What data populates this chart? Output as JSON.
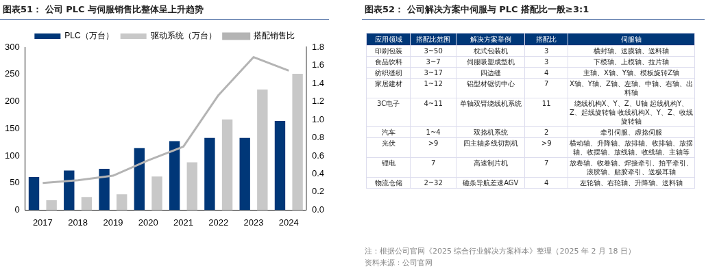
{
  "chart_data": [
    {
      "type": "bar",
      "title": "图表51：  公司 PLC 与伺服销售比整体呈上升趋势",
      "categories": [
        "2017",
        "2018",
        "2019",
        "2020",
        "2021",
        "2022",
        "2023",
        "2024"
      ],
      "series": [
        {
          "name": "PLC（万台）",
          "color": "#003778",
          "values": [
            61,
            73,
            76,
            114,
            127,
            133,
            133,
            164
          ]
        },
        {
          "name": "驱动系统（万台）",
          "color": "#c8c8c8",
          "values": [
            18,
            24,
            29,
            62,
            88,
            167,
            222,
            251
          ]
        },
        {
          "name": "搭配销售比",
          "color": "#b4b4b4",
          "type": "line",
          "axis": "y2",
          "values": [
            0.3,
            0.33,
            0.38,
            0.55,
            0.7,
            1.27,
            1.69,
            1.54
          ]
        }
      ],
      "ylim": [
        0,
        300
      ],
      "yticks": [
        0,
        50,
        100,
        150,
        200,
        250,
        300
      ],
      "y2lim": [
        0,
        1.8
      ],
      "y2ticks": [
        {
          "value": 0,
          "label": "0.0"
        },
        0.2,
        0.4,
        0.6,
        0.8,
        {
          "value": 1,
          "label": "1.0"
        },
        1.2,
        1.4,
        1.6,
        1.8
      ],
      "legend": "top",
      "grid": false,
      "marker": "none"
    },
    {
      "type": "other",
      "title": "图表52：  公司解决方案中伺服与 PLC 搭配比一般≥3:1",
      "categories": [
        "应用领域",
        "搭配比范围",
        "解决方案举例",
        "搭配比",
        "伺服轴"
      ],
      "annotations": [
        "印刷包装",
        "3~50",
        "枕式包装机",
        "3",
        "横封轴、送膜轴、送料轴",
        "食品饮料",
        "3~7",
        "伺服吸塑成型机",
        "3",
        "下模轴、上模轴、拉片轴",
        "纺织缝纫",
        "3~17",
        "四边缝",
        "4",
        "主轴、X轴、Y轴、模板旋转Z轴",
        "家居建材",
        "1~12",
        "铝型材锯切中心",
        "7",
        "X轴、Y轴、Z轴、左轴、中轴、右轴、出料轴",
        "3C电子",
        "4~11",
        "单轴双臂绕线机系统",
        "11",
        "绕线机构X、Y、Z、U轴 起线机构Y、Z、起线旋转轴 收线机构X、Y、Z、收线旋转轴",
        "汽车",
        "1~4",
        "双捻机系统",
        "2",
        "牵引伺服、虚捻伺服",
        "光伏",
        ">9",
        "四主轴多线切割机",
        ">9",
        "横动轴、升降轴、放排轴、收排轴、放摆轴、收摆轴、放线轴、收线轴、主轴等",
        "锂电",
        "7",
        "高速制片机",
        "7",
        "放卷轴、收卷轴、焊接牵引、拍平牵引、滚胶轴、贴胶牵引、送极耳轴",
        "物流仓储",
        "2~32",
        "磁条导航差速AGV",
        "4",
        "左轮轴、右轮轴、升降轴、送料轴",
        "注：根据公司官网《2025 综合行业解决方案样本》整理（2025 年 2 月 18 日）",
        "资料来源：公司官网"
      ]
    }
  ]
}
